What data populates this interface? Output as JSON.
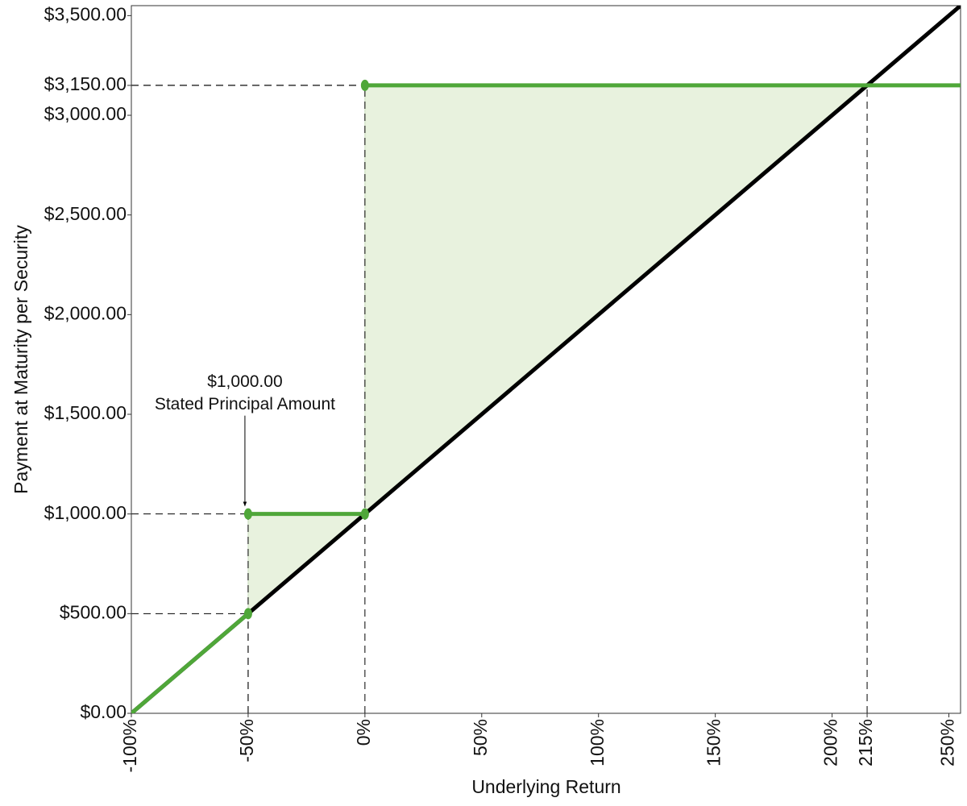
{
  "chart_data": {
    "type": "line",
    "x_label": "Underlying Return",
    "y_label": "Payment at Maturity per Security",
    "xlim": [
      -100,
      255
    ],
    "ylim": [
      0,
      3550
    ],
    "xticks": [
      {
        "value": -100,
        "label": "-100%"
      },
      {
        "value": -50,
        "label": "-50%"
      },
      {
        "value": 0,
        "label": "0%"
      },
      {
        "value": 50,
        "label": "50%"
      },
      {
        "value": 100,
        "label": "100%"
      },
      {
        "value": 150,
        "label": "150%"
      },
      {
        "value": 200,
        "label": "200%"
      },
      {
        "value": 215,
        "label": "215%"
      },
      {
        "value": 250,
        "label": "250%"
      }
    ],
    "yticks": [
      {
        "value": 0,
        "label": "$0.00"
      },
      {
        "value": 500,
        "label": "$500.00"
      },
      {
        "value": 1000,
        "label": "$1,000.00"
      },
      {
        "value": 1500,
        "label": "$1,500.00"
      },
      {
        "value": 2000,
        "label": "$2,000.00"
      },
      {
        "value": 2500,
        "label": "$2,500.00"
      },
      {
        "value": 3000,
        "label": "$3,000.00"
      },
      {
        "value": 3150,
        "label": "$3,150.00"
      },
      {
        "value": 3500,
        "label": "$3,500.00"
      }
    ],
    "series": [
      {
        "color": "#000000",
        "x": [
          -100,
          255
        ],
        "values": [
          0,
          3550
        ]
      },
      {
        "color": "#4fa739",
        "x": [
          -100,
          -50,
          null,
          -50,
          0,
          null,
          0,
          255
        ],
        "values": [
          0,
          500,
          null,
          1000,
          1000,
          null,
          3150,
          3150
        ],
        "markers": true
      }
    ],
    "fill_color": "#e8f2de",
    "reference_points": [
      {
        "x": -50,
        "y": 500
      },
      {
        "x": -50,
        "y": 1000
      },
      {
        "x": 0,
        "y": 3150
      },
      {
        "x": 215,
        "y": 3150
      }
    ],
    "annotation": {
      "lines": [
        "$1,000.00",
        "Stated Principal Amount"
      ]
    }
  }
}
